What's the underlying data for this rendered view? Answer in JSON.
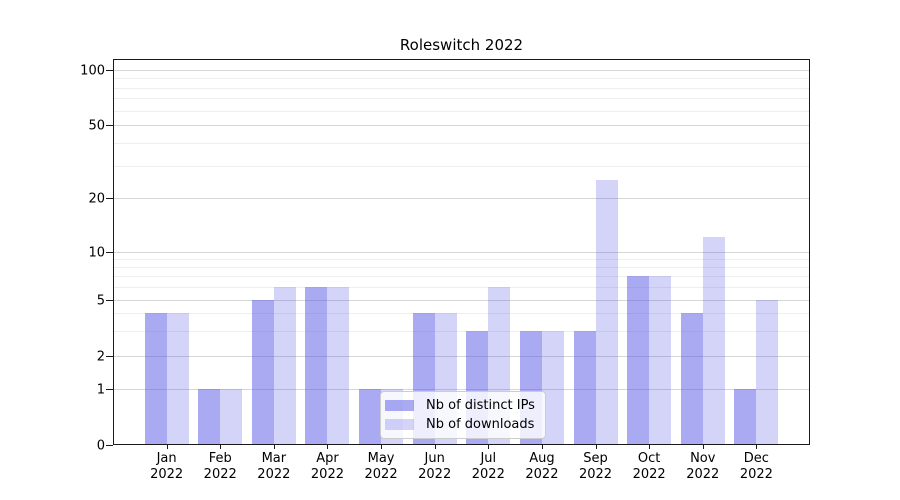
{
  "title": "Roleswitch 2022",
  "chart_data": {
    "type": "bar",
    "title": "Roleswitch 2022",
    "categories": [
      "Jan\n2022",
      "Feb\n2022",
      "Mar\n2022",
      "Apr\n2022",
      "May\n2022",
      "Jun\n2022",
      "Jul\n2022",
      "Aug\n2022",
      "Sep\n2022",
      "Oct\n2022",
      "Nov\n2022",
      "Dec\n2022"
    ],
    "series": [
      {
        "name": "Nb of distinct IPs",
        "color": "rgba(85,85,230,0.5)",
        "values": [
          4,
          1,
          5,
          6,
          1,
          4,
          3,
          3,
          3,
          7,
          4,
          1
        ]
      },
      {
        "name": "Nb of downloads",
        "color": "rgba(85,85,230,0.25)",
        "values": [
          4,
          1,
          6,
          6,
          1,
          4,
          6,
          3,
          25,
          7,
          12,
          5
        ]
      }
    ],
    "y_axis": {
      "scale": "log-like with zero baseline",
      "ticks": [
        0,
        1,
        2,
        5,
        10,
        20,
        50,
        100
      ],
      "minor_gridlines": [
        3,
        4,
        6,
        7,
        8,
        9,
        30,
        40,
        60,
        70,
        80,
        90
      ],
      "range_top": 115
    },
    "x_axis": {
      "label_lines": 2
    },
    "grid": true,
    "legend_position": "lower center"
  },
  "colors": {
    "bar_base": "#5555e6",
    "major_grid": "#d6d6d6",
    "minor_grid": "#eeeeee",
    "spine": "#1a1a1a",
    "legend_border": "#cccccc",
    "text": "#000000"
  }
}
